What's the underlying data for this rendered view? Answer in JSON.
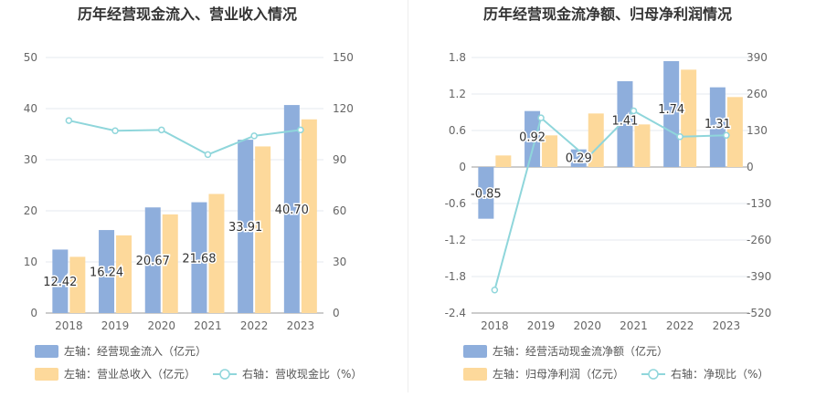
{
  "chart_data": [
    {
      "type": "bar",
      "title": "历年经营现金流入、营业收入情况",
      "categories": [
        "2018",
        "2019",
        "2020",
        "2021",
        "2022",
        "2023"
      ],
      "y_left_range": [
        0,
        50
      ],
      "y_left_ticks": [
        "0",
        "10",
        "20",
        "30",
        "40",
        "50"
      ],
      "y_right_range": [
        0,
        150
      ],
      "y_right_ticks": [
        "0",
        "30",
        "60",
        "90",
        "120",
        "150"
      ],
      "series": [
        {
          "name": "左轴：经营现金流入（亿元）",
          "kind": "bar",
          "axis": "left",
          "color": "#8eaedc",
          "values": [
            12.42,
            16.24,
            20.67,
            21.68,
            33.91,
            40.7
          ],
          "labels": [
            "12.42",
            "16.24",
            "20.67",
            "21.68",
            "33.91",
            "40.70"
          ]
        },
        {
          "name": "左轴：营业总收入（亿元）",
          "kind": "bar",
          "axis": "left",
          "color": "#fdd99b",
          "values": [
            11.0,
            15.2,
            19.3,
            23.3,
            32.6,
            37.9
          ]
        },
        {
          "name": "右轴：营收现金比（%）",
          "kind": "line",
          "axis": "right",
          "color": "#8fd6db",
          "values": [
            113,
            107,
            107.5,
            93,
            104,
            107.5
          ]
        }
      ],
      "grid": true
    },
    {
      "type": "bar",
      "title": "历年经营现金流净额、归母净利润情况",
      "categories": [
        "2018",
        "2019",
        "2020",
        "2021",
        "2022",
        "2023"
      ],
      "y_left_range": [
        -2.4,
        1.8
      ],
      "y_left_ticks": [
        "-2.4",
        "-1.8",
        "-1.2",
        "-0.6",
        "0",
        "0.6",
        "1.2",
        "1.8"
      ],
      "y_right_range": [
        -520,
        390
      ],
      "y_right_ticks": [
        "-520",
        "-390",
        "-260",
        "-130",
        "0",
        "130",
        "260",
        "390"
      ],
      "series": [
        {
          "name": "左轴：经营活动现金流净额（亿元）",
          "kind": "bar",
          "axis": "left",
          "color": "#8eaedc",
          "values": [
            -0.85,
            0.92,
            0.29,
            1.41,
            1.74,
            1.31
          ],
          "labels": [
            "-0.85",
            "0.92",
            "0.29",
            "1.41",
            "1.74",
            "1.31"
          ]
        },
        {
          "name": "左轴：归母净利润（亿元）",
          "kind": "bar",
          "axis": "left",
          "color": "#fdd99b",
          "values": [
            0.19,
            0.52,
            0.88,
            0.7,
            1.6,
            1.15
          ]
        },
        {
          "name": "右轴：净现比（%）",
          "kind": "line",
          "axis": "right",
          "color": "#8fd6db",
          "values": [
            -438,
            175,
            33,
            200,
            108,
            113
          ]
        }
      ],
      "grid": true
    }
  ]
}
